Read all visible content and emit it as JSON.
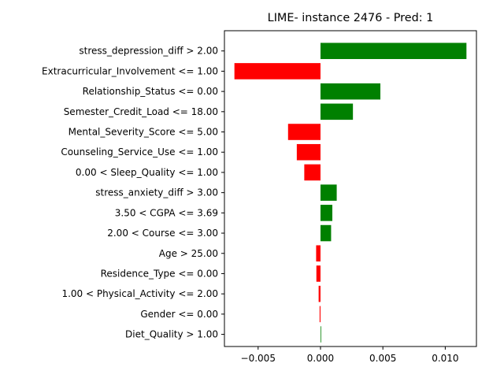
{
  "chart_data": {
    "type": "bar",
    "orientation": "horizontal",
    "title": "LIME- instance 2476 - Pred: 1",
    "xlabel": "",
    "ylabel": "",
    "xlim": [
      -0.0077,
      0.0125
    ],
    "xticks": [
      -0.005,
      0.0,
      0.005,
      0.01
    ],
    "xtick_labels": [
      "−0.005",
      "0.000",
      "0.005",
      "0.010"
    ],
    "grid": false,
    "colors": {
      "positive": "#008000",
      "negative": "#ff0000"
    },
    "categories": [
      "stress_depression_diff > 2.00",
      "Extracurricular_Involvement <= 1.00",
      "Relationship_Status <= 0.00",
      "Semester_Credit_Load <= 18.00",
      "Mental_Severity_Score <= 5.00",
      "Counseling_Service_Use <= 1.00",
      "0.00 < Sleep_Quality <= 1.00",
      "stress_anxiety_diff > 3.00",
      "3.50 < CGPA <= 3.69",
      "2.00 < Course <= 3.00",
      "Age > 25.00",
      "Residence_Type <= 0.00",
      "1.00 < Physical_Activity <= 2.00",
      "Gender <= 0.00",
      "Diet_Quality > 1.00"
    ],
    "values": [
      0.0117,
      -0.0069,
      0.0048,
      0.0026,
      -0.0026,
      -0.0019,
      -0.0013,
      0.0013,
      0.00095,
      0.00085,
      -0.00035,
      -0.00033,
      -0.00015,
      -7e-05,
      5e-05
    ]
  }
}
